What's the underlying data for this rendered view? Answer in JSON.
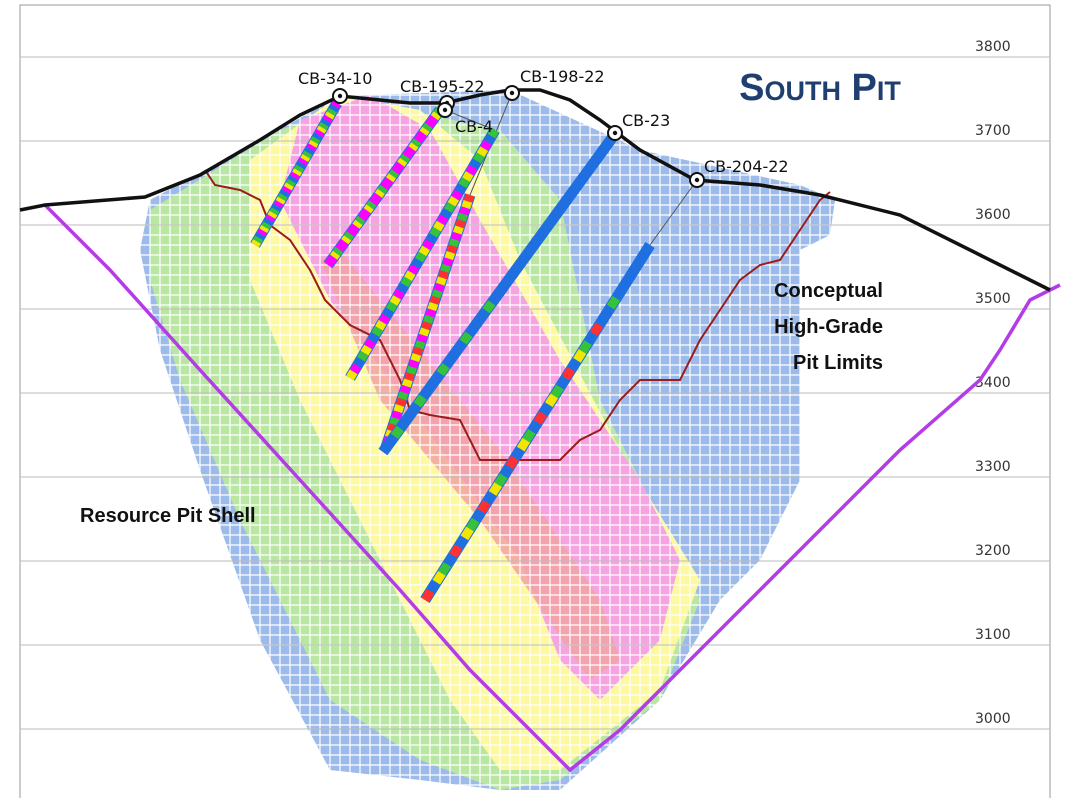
{
  "title": "South Pit",
  "elevations": [
    3800,
    3700,
    3600,
    3500,
    3400,
    3300,
    3200,
    3100,
    3000
  ],
  "drill_holes": [
    "CB-34-10",
    "CB-195-22",
    "CB-198-22",
    "CB-4",
    "CB-23",
    "CB-204-22"
  ],
  "annotations": {
    "pit_limits": [
      "Conceptual",
      "High-Grade",
      "Pit Limits"
    ],
    "pit_shell": "Resource Pit Shell"
  }
}
